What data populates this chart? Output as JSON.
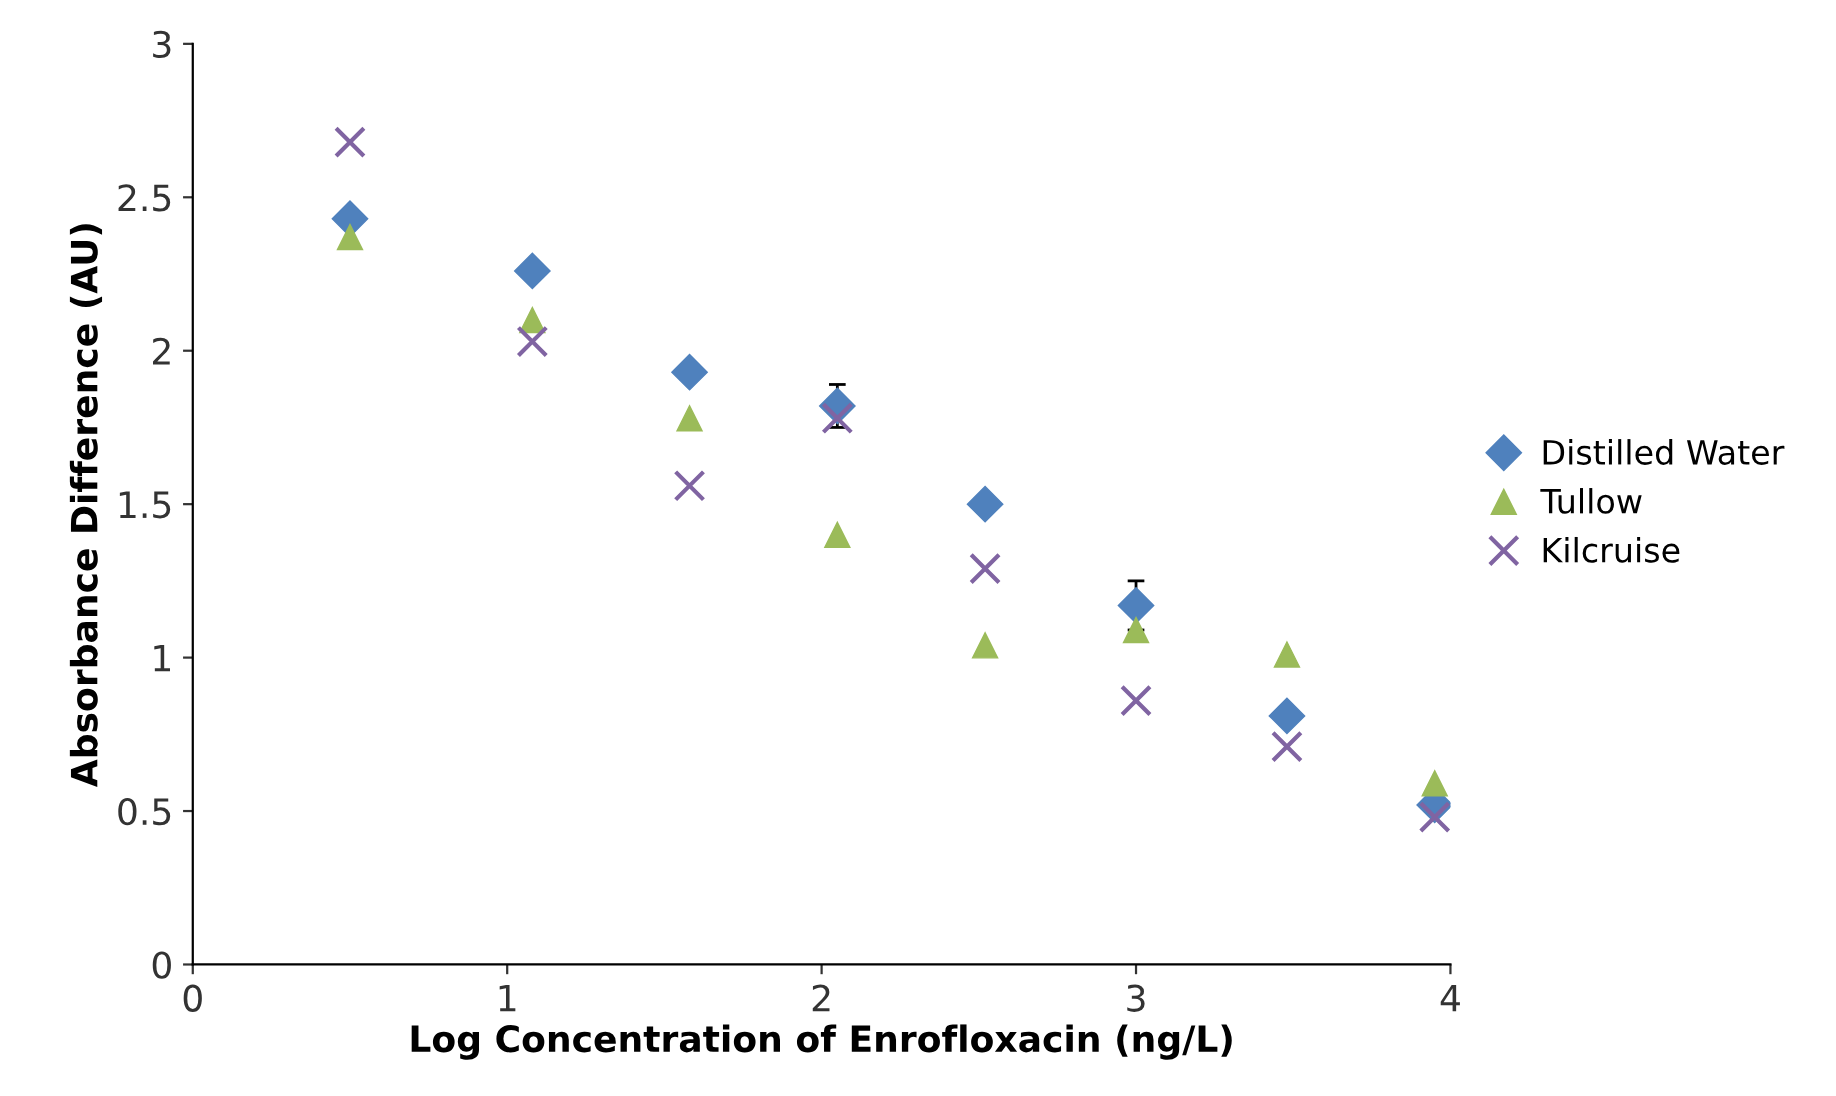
{
  "chart_data": {
    "type": "scatter",
    "xlabel": "Log Concentration of Enrofloxacin (ng/L)",
    "ylabel": "Absorbance Difference (AU)",
    "x": [
      0.5,
      1.08,
      1.58,
      2.05,
      2.52,
      3.0,
      3.48,
      3.95
    ],
    "series": [
      {
        "name": "Distilled Water",
        "color": "#4f81bd",
        "marker": "diamond",
        "values": [
          2.43,
          2.26,
          1.93,
          1.82,
          1.5,
          1.17,
          0.81,
          0.52
        ],
        "errors": [
          null,
          null,
          null,
          0.07,
          null,
          0.08,
          null,
          null
        ]
      },
      {
        "name": "Tullow",
        "color": "#9bbb59",
        "marker": "triangle",
        "values": [
          2.37,
          2.1,
          1.78,
          1.4,
          1.04,
          1.09,
          1.01,
          0.59
        ]
      },
      {
        "name": "Kilcruise",
        "color": "#8064a2",
        "marker": "cross",
        "values": [
          2.68,
          2.03,
          1.56,
          1.78,
          1.29,
          0.86,
          0.71,
          0.48
        ]
      }
    ],
    "xlim": [
      0,
      4
    ],
    "xticks": [
      0,
      1,
      2,
      3,
      4
    ],
    "ylim": [
      0,
      3
    ],
    "yticks": [
      0,
      0.5,
      1,
      1.5,
      2,
      2.5,
      3
    ],
    "grid": false,
    "legend": "right"
  }
}
